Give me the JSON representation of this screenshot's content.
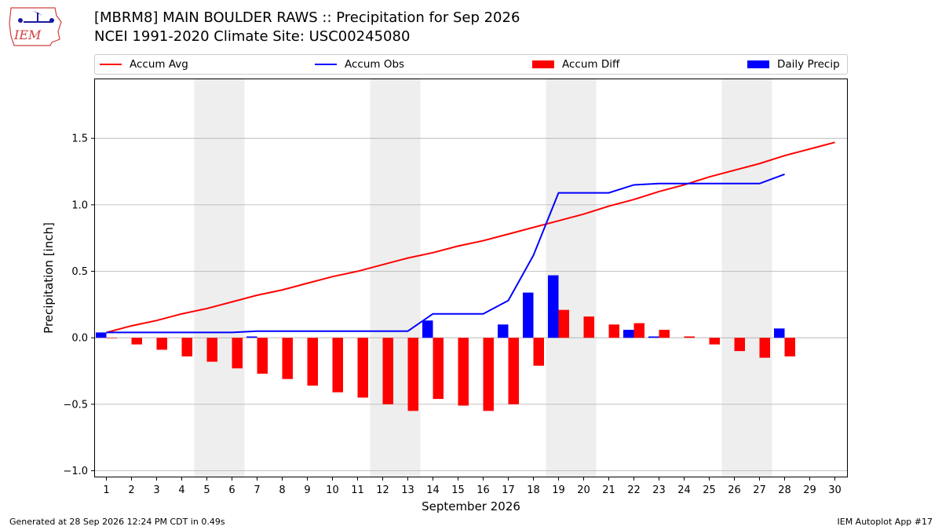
{
  "header": {
    "title_line1": "[MBRM8] MAIN BOULDER RAWS :: Precipitation for Sep 2026",
    "title_line2": "NCEI 1991-2020 Climate Site: USC00245080"
  },
  "logo": {
    "text": "IEM"
  },
  "footer": {
    "left": "Generated at 28 Sep 2026 12:24 PM CDT in 0.49s",
    "right": "IEM Autoplot App #17"
  },
  "colors": {
    "avg": "#ff0000",
    "obs": "#0000ff",
    "diff": "#ff0000",
    "daily": "#0000ff",
    "weekend": "#eeeeee",
    "grid": "#b0b0b0"
  },
  "chart_data": {
    "type": "bar",
    "xlabel": "September 2026",
    "ylabel": "Precipitation [inch]",
    "ylim": [
      -1.05,
      1.95
    ],
    "yticks": [
      -1.0,
      -0.5,
      0.0,
      0.5,
      1.0,
      1.5
    ],
    "ytick_labels": [
      "−1.0",
      "−0.5",
      "0.0",
      "0.5",
      "1.0",
      "1.5"
    ],
    "grid": true,
    "legend_position": "top",
    "days": [
      1,
      2,
      3,
      4,
      5,
      6,
      7,
      8,
      9,
      10,
      11,
      12,
      13,
      14,
      15,
      16,
      17,
      18,
      19,
      20,
      21,
      22,
      23,
      24,
      25,
      26,
      27,
      28,
      29,
      30
    ],
    "weekend_days": [
      5,
      6,
      12,
      13,
      19,
      20,
      26,
      27
    ],
    "legend": [
      "Accum Avg",
      "Accum Obs",
      "Accum Diff",
      "Daily Precip"
    ],
    "series": [
      {
        "name": "Accum Avg",
        "type": "line",
        "values": [
          0.04,
          0.09,
          0.13,
          0.18,
          0.22,
          0.27,
          0.32,
          0.36,
          0.41,
          0.46,
          0.5,
          0.55,
          0.6,
          0.64,
          0.69,
          0.73,
          0.78,
          0.83,
          0.88,
          0.93,
          0.99,
          1.04,
          1.1,
          1.15,
          1.21,
          1.26,
          1.31,
          1.37,
          1.42,
          1.47
        ]
      },
      {
        "name": "Accum Obs",
        "type": "line",
        "values": [
          0.04,
          0.04,
          0.04,
          0.04,
          0.04,
          0.04,
          0.05,
          0.05,
          0.05,
          0.05,
          0.05,
          0.05,
          0.05,
          0.18,
          0.18,
          0.18,
          0.28,
          0.62,
          1.09,
          1.09,
          1.09,
          1.15,
          1.16,
          1.16,
          1.16,
          1.16,
          1.16,
          1.23
        ]
      },
      {
        "name": "Accum Diff",
        "type": "bar",
        "values": [
          0.0,
          -0.05,
          -0.09,
          -0.14,
          -0.18,
          -0.23,
          -0.27,
          -0.31,
          -0.36,
          -0.41,
          -0.45,
          -0.5,
          -0.55,
          -0.46,
          -0.51,
          -0.55,
          -0.5,
          -0.21,
          0.21,
          0.16,
          0.1,
          0.11,
          0.06,
          0.01,
          -0.05,
          -0.1,
          -0.15,
          -0.14
        ]
      },
      {
        "name": "Daily Precip",
        "type": "bar",
        "values": [
          0.04,
          0.0,
          0.0,
          0.0,
          0.0,
          0.0,
          0.01,
          0.0,
          0.0,
          0.0,
          0.0,
          0.0,
          0.0,
          0.13,
          0.0,
          0.0,
          0.1,
          0.34,
          0.47,
          0.0,
          0.0,
          0.06,
          0.01,
          0.0,
          0.0,
          0.0,
          0.0,
          0.07
        ]
      }
    ]
  }
}
